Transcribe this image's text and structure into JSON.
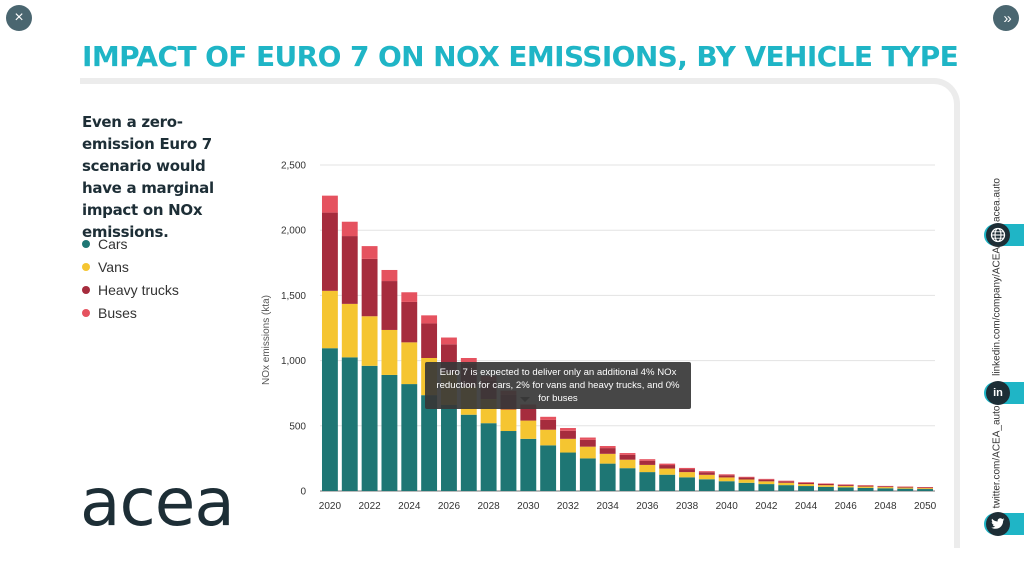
{
  "title": "IMPACT OF EURO 7 ON NOX EMISSIONS, BY VEHICLE TYPE",
  "subtitle": "Even a zero-emission Euro 7 scenario would have a marginal impact on NOx emissions.",
  "logo_text": "acea",
  "nav": {
    "close_icon": "×",
    "next_icon": "»"
  },
  "tooltip": "Euro 7 is expected to deliver only an additional 4% NOx reduction for cars, 2% for vans and heavy trucks, and 0% for buses",
  "social": {
    "website": "acea.auto",
    "linkedin": "linkedin.com/company/ACEA/",
    "twitter": "twitter.com/ACEA_auto",
    "linkedin_icon_text": "in"
  },
  "colors": {
    "accent": "#1fb5c6",
    "dark": "#1d2e36",
    "cars": "#1e7674",
    "vans": "#f5c531",
    "heavy_trucks": "#a62c3d",
    "buses": "#e5525f"
  },
  "chart_data": {
    "type": "bar",
    "stacked": true,
    "ylabel": "NOx emissions (kta)",
    "xlabel": "",
    "ylim": [
      0,
      2500
    ],
    "yticks": [
      0,
      500,
      1000,
      1500,
      2000,
      2500
    ],
    "ytick_labels": [
      "0",
      "500",
      "1,000",
      "1,500",
      "2,000",
      "2,500"
    ],
    "grid": true,
    "legend_position": "left",
    "categories": [
      "2020",
      "2021",
      "2022",
      "2023",
      "2024",
      "2025",
      "2026",
      "2027",
      "2028",
      "2029",
      "2030",
      "2031",
      "2032",
      "2033",
      "2034",
      "2035",
      "2036",
      "2037",
      "2038",
      "2039",
      "2040",
      "2041",
      "2042",
      "2043",
      "2044",
      "2045",
      "2046",
      "2047",
      "2048",
      "2049",
      "2050"
    ],
    "xtick_labels": [
      "2020",
      "2022",
      "2024",
      "2026",
      "2028",
      "2030",
      "2032",
      "2034",
      "2036",
      "2038",
      "2040",
      "2042",
      "2044",
      "2046",
      "2048",
      "2050"
    ],
    "series": [
      {
        "name": "Cars",
        "color": "#1e7674",
        "values": [
          1095,
          1025,
          960,
          890,
          820,
          735,
          660,
          585,
          520,
          460,
          400,
          350,
          295,
          250,
          210,
          175,
          145,
          125,
          105,
          90,
          75,
          63,
          53,
          45,
          38,
          32,
          28,
          24,
          21,
          18,
          15
        ]
      },
      {
        "name": "Vans",
        "color": "#f5c531",
        "values": [
          440,
          410,
          380,
          345,
          320,
          285,
          250,
          215,
          185,
          165,
          140,
          120,
          105,
          90,
          75,
          65,
          55,
          47,
          40,
          34,
          29,
          25,
          21,
          18,
          15,
          13,
          11,
          10,
          9,
          8,
          7
        ]
      },
      {
        "name": "Heavy trucks",
        "color": "#a62c3d",
        "values": [
          600,
          520,
          440,
          375,
          310,
          265,
          215,
          175,
          140,
          112,
          95,
          75,
          62,
          52,
          44,
          37,
          32,
          27,
          23,
          20,
          17,
          15,
          13,
          11,
          10,
          9,
          8,
          7,
          6,
          6,
          5
        ]
      },
      {
        "name": "Buses",
        "color": "#e5525f",
        "values": [
          130,
          110,
          98,
          85,
          74,
          62,
          52,
          45,
          38,
          33,
          28,
          24,
          21,
          18,
          16,
          14,
          12,
          11,
          9,
          8,
          7,
          6,
          6,
          5,
          5,
          4,
          4,
          4,
          3,
          3,
          3
        ]
      }
    ]
  }
}
